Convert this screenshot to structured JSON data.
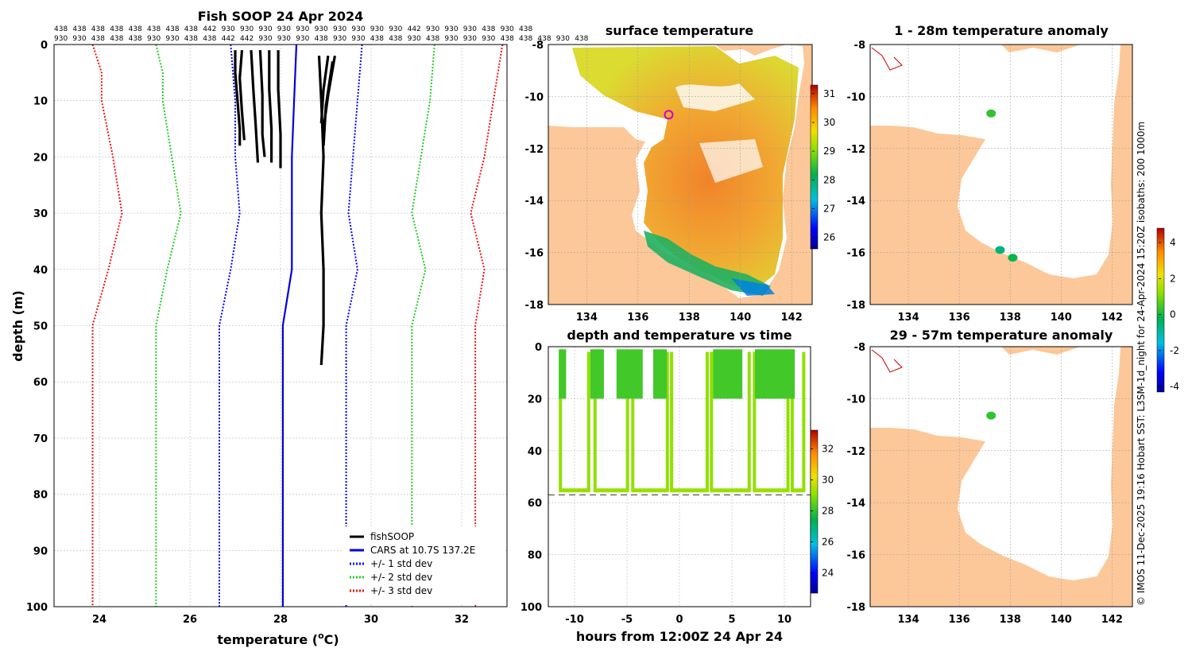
{
  "figure_credit": "© IMOS 11-Dec-2025 19:16 Hobart SST: L3SM-1d_night for 24-Apr-2024 15:20Z isobaths: 200  1000m",
  "colors": {
    "land": "#fcc899",
    "profile": "#000000",
    "cars": "#0000dd",
    "std1": "#0000ff",
    "std2": "#22cc22",
    "std3": "#ee1111",
    "grid": "#bbbbbb"
  },
  "chart_data": [
    {
      "id": "profile",
      "type": "line",
      "title": "Fish SOOP 24 Apr 2024",
      "xlabel": "temperature (",
      "xlabel_unit": "o",
      "xlabel_tail": "C)",
      "ylabel": "depth (m)",
      "xlim": [
        23,
        33
      ],
      "ylim": [
        0,
        100
      ],
      "xticks": [
        24,
        26,
        28,
        30,
        32
      ],
      "yticks": [
        0,
        10,
        20,
        30,
        40,
        50,
        60,
        70,
        80,
        90,
        100
      ],
      "top_labels_row1": [
        "438",
        "438",
        "438",
        "438",
        "438",
        "438",
        "438",
        "438",
        "442",
        "930",
        "930",
        "930",
        "930",
        "930",
        "930",
        "930",
        "930",
        "930",
        "930",
        "442",
        "930",
        "930",
        "930",
        "438",
        "930",
        "438"
      ],
      "top_labels_row2": [
        "930",
        "930",
        "438",
        "438",
        "438",
        "930",
        "930",
        "438",
        "438",
        "442",
        "442",
        "930",
        "930",
        "930",
        "438",
        "930",
        "930",
        "438",
        "438",
        "930",
        "438",
        "930",
        "930",
        "930",
        "438",
        "438",
        "438",
        "930",
        "438"
      ],
      "series": [
        {
          "name": "fishSOOP",
          "style": "solid",
          "color": "#000000"
        },
        {
          "name": "CARS at 10.7S 137.2E",
          "style": "solid",
          "color": "#0000dd",
          "points": [
            [
              28.35,
              0
            ],
            [
              28.3,
              10
            ],
            [
              28.25,
              20
            ],
            [
              28.25,
              30
            ],
            [
              28.25,
              40
            ],
            [
              28.05,
              50
            ],
            [
              28.05,
              60
            ],
            [
              28.05,
              70
            ],
            [
              28.05,
              80
            ],
            [
              28.05,
              90
            ],
            [
              28.05,
              100
            ]
          ]
        },
        {
          "name": "+/- 1 std dev",
          "style": "dotted",
          "color": "#0000ff",
          "left": [
            [
              26.9,
              0
            ],
            [
              27.0,
              10
            ],
            [
              27.0,
              20
            ],
            [
              27.1,
              30
            ],
            [
              26.9,
              40
            ],
            [
              26.65,
              50
            ],
            [
              26.65,
              60
            ],
            [
              26.65,
              70
            ],
            [
              26.65,
              80
            ],
            [
              26.65,
              90
            ],
            [
              26.65,
              100
            ]
          ],
          "right": [
            [
              29.8,
              0
            ],
            [
              29.7,
              10
            ],
            [
              29.6,
              20
            ],
            [
              29.5,
              30
            ],
            [
              29.7,
              40
            ],
            [
              29.45,
              50
            ],
            [
              29.45,
              60
            ],
            [
              29.45,
              70
            ],
            [
              29.45,
              80
            ],
            [
              29.45,
              90
            ],
            [
              29.45,
              100
            ]
          ]
        },
        {
          "name": "+/- 2 std dev",
          "style": "dotted",
          "color": "#22cc22",
          "left": [
            [
              25.25,
              0
            ],
            [
              25.4,
              5
            ],
            [
              25.4,
              10
            ],
            [
              25.6,
              20
            ],
            [
              25.8,
              30
            ],
            [
              25.5,
              40
            ],
            [
              25.25,
              50
            ],
            [
              25.25,
              60
            ],
            [
              25.25,
              70
            ],
            [
              25.25,
              80
            ],
            [
              25.25,
              90
            ],
            [
              25.25,
              100
            ]
          ],
          "right": [
            [
              31.4,
              0
            ],
            [
              31.3,
              10
            ],
            [
              31.1,
              20
            ],
            [
              30.9,
              30
            ],
            [
              31.2,
              40
            ],
            [
              30.9,
              50
            ],
            [
              30.9,
              60
            ],
            [
              30.9,
              70
            ],
            [
              30.9,
              80
            ],
            [
              30.9,
              90
            ],
            [
              30.9,
              100
            ]
          ]
        },
        {
          "name": "+/- 3 std dev",
          "style": "dotted",
          "color": "#ee1111",
          "left": [
            [
              23.85,
              0
            ],
            [
              24.05,
              5
            ],
            [
              24.05,
              10
            ],
            [
              24.3,
              20
            ],
            [
              24.5,
              30
            ],
            [
              24.2,
              40
            ],
            [
              23.85,
              50
            ],
            [
              23.85,
              60
            ],
            [
              23.85,
              70
            ],
            [
              23.85,
              80
            ],
            [
              23.85,
              90
            ],
            [
              23.85,
              100
            ]
          ],
          "right": [
            [
              32.9,
              0
            ],
            [
              32.7,
              10
            ],
            [
              32.5,
              20
            ],
            [
              32.2,
              30
            ],
            [
              32.5,
              40
            ],
            [
              32.3,
              50
            ],
            [
              32.3,
              60
            ],
            [
              32.3,
              70
            ],
            [
              32.3,
              80
            ],
            [
              32.3,
              90
            ],
            [
              32.3,
              100
            ]
          ]
        }
      ],
      "fish_profiles": [
        [
          [
            27.0,
            1
          ],
          [
            27.0,
            5
          ],
          [
            27.05,
            10
          ],
          [
            27.1,
            15
          ],
          [
            27.1,
            18
          ]
        ],
        [
          [
            27.15,
            1
          ],
          [
            27.1,
            6
          ],
          [
            27.15,
            12
          ],
          [
            27.2,
            17
          ]
        ],
        [
          [
            27.35,
            1
          ],
          [
            27.4,
            8
          ],
          [
            27.45,
            14
          ],
          [
            27.5,
            21
          ]
        ],
        [
          [
            27.55,
            1
          ],
          [
            27.6,
            9
          ],
          [
            27.6,
            16
          ],
          [
            27.65,
            20
          ]
        ],
        [
          [
            27.75,
            1
          ],
          [
            27.75,
            8
          ],
          [
            27.8,
            15
          ],
          [
            27.8,
            21
          ]
        ],
        [
          [
            27.95,
            1
          ],
          [
            27.95,
            8
          ],
          [
            28.0,
            16
          ],
          [
            28.0,
            22
          ]
        ],
        [
          [
            28.85,
            2
          ],
          [
            28.9,
            10
          ],
          [
            28.95,
            20
          ],
          [
            28.9,
            30
          ],
          [
            28.95,
            40
          ],
          [
            28.95,
            50
          ],
          [
            28.9,
            57
          ]
        ],
        [
          [
            29.05,
            2
          ],
          [
            28.95,
            8
          ],
          [
            28.9,
            14
          ]
        ],
        [
          [
            29.2,
            2
          ],
          [
            29.05,
            9
          ],
          [
            28.95,
            15
          ]
        ],
        [
          [
            29.15,
            3
          ],
          [
            29.0,
            11
          ],
          [
            28.95,
            18
          ]
        ]
      ],
      "legend_position": "bottom-right"
    },
    {
      "id": "sst_map",
      "type": "heatmap",
      "title": "surface temperature",
      "xlim": [
        132.5,
        142.8
      ],
      "ylim": [
        -18,
        -8
      ],
      "xticks": [
        134,
        136,
        138,
        140,
        142
      ],
      "yticks": [
        -8,
        -10,
        -12,
        -14,
        -16,
        -18
      ],
      "colorbar_range": [
        25.6,
        31.3
      ],
      "colorbar_ticks": [
        26,
        27,
        28,
        29,
        30,
        31
      ],
      "cast_marker": [
        137.2,
        -10.7
      ]
    },
    {
      "id": "depth_time",
      "type": "scatter",
      "title": "depth and temperature vs time",
      "xlabel": "hours from 12:00Z 24 Apr 24",
      "xlim": [
        -12.5,
        12.5
      ],
      "ylim": [
        0,
        100
      ],
      "xticks": [
        -10,
        -5,
        0,
        5,
        10
      ],
      "yticks": [
        0,
        20,
        40,
        60,
        80,
        100
      ],
      "colorbar_range": [
        22.7,
        33.2
      ],
      "colorbar_ticks": [
        24,
        26,
        28,
        30,
        32
      ],
      "bottom_depth": 57,
      "shallow_blocks": [
        [
          -11.5,
          -10.8
        ],
        [
          -8.5,
          -7.2
        ],
        [
          -6.0,
          -3.5
        ],
        [
          -2.5,
          -1.2
        ],
        [
          3.2,
          6.0
        ],
        [
          7.2,
          11.0
        ]
      ],
      "deep_casts": [
        [
          -11.5,
          -8.5
        ],
        [
          -8.2,
          -4.8
        ],
        [
          -4.6,
          -1.0
        ],
        [
          -0.9,
          2.8
        ],
        [
          2.9,
          6.8
        ],
        [
          7.0,
          10.5
        ],
        [
          10.6,
          12.0
        ]
      ]
    },
    {
      "id": "anom_top",
      "type": "scatter",
      "title": "1 - 28m temperature anomaly",
      "xlim": [
        132.5,
        142.8
      ],
      "ylim": [
        -18,
        -8
      ],
      "xticks": [
        134,
        136,
        138,
        140,
        142
      ],
      "yticks": [
        -8,
        -10,
        -12,
        -14,
        -16,
        -18
      ],
      "points": [
        {
          "lon": 137.25,
          "lat": -10.65,
          "anomaly": 0.3
        },
        {
          "lon": 137.6,
          "lat": -15.9,
          "anomaly": -0.6
        },
        {
          "lon": 138.1,
          "lat": -16.2,
          "anomaly": -0.1
        }
      ]
    },
    {
      "id": "anom_bottom",
      "type": "scatter",
      "title": "29 - 57m temperature anomaly",
      "xlim": [
        132.5,
        142.8
      ],
      "ylim": [
        -18,
        -8
      ],
      "xticks": [
        134,
        136,
        138,
        140,
        142
      ],
      "yticks": [
        -8,
        -10,
        -12,
        -14,
        -16,
        -18
      ],
      "points": [
        {
          "lon": 137.25,
          "lat": -10.65,
          "anomaly": 0.3
        }
      ]
    },
    {
      "id": "anom_colorbar",
      "type": "heatmap",
      "colorbar_range": [
        -4.3,
        4.8
      ],
      "colorbar_ticks": [
        4,
        2,
        0,
        -2,
        -4
      ]
    }
  ]
}
